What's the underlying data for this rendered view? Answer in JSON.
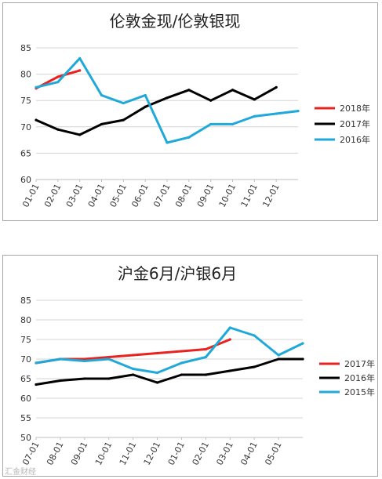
{
  "charts": [
    {
      "title": "伦敦金现/伦敦银现",
      "type": "line",
      "ylim": [
        60,
        85
      ],
      "yticks": [
        "60",
        "65",
        "70",
        "75",
        "80",
        "85"
      ],
      "categories": [
        "01-01",
        "02-01",
        "03-01",
        "04-01",
        "05-01",
        "06-01",
        "07-01",
        "08-01",
        "09-01",
        "10-01",
        "11-01",
        "12-01"
      ],
      "x": [
        1,
        2,
        3,
        4,
        5,
        6,
        7,
        8,
        9,
        10,
        11,
        12,
        13
      ],
      "grid": true,
      "legend_position": "right",
      "series": [
        {
          "name": "2018年",
          "color": "#e8231f",
          "values": [
            77.3,
            79.5,
            80.7,
            null,
            null,
            null,
            null,
            null,
            null,
            null,
            null,
            null,
            null
          ]
        },
        {
          "name": "2017年",
          "color": "#000000",
          "values": [
            71.3,
            69.5,
            68.5,
            70.5,
            71.3,
            73.8,
            75.5,
            77.0,
            75.0,
            77.0,
            75.2,
            77.5,
            null
          ]
        },
        {
          "name": "2016年",
          "color": "#1fa9d9",
          "values": [
            77.5,
            78.5,
            83.0,
            76.0,
            74.5,
            76.0,
            67.0,
            68.0,
            70.5,
            70.5,
            72.0,
            72.5,
            73.0
          ]
        }
      ]
    },
    {
      "title": "沪金6月/沪银6月",
      "type": "line",
      "ylim": [
        50,
        85
      ],
      "yticks": [
        "50",
        "55",
        "60",
        "65",
        "70",
        "75",
        "80",
        "85"
      ],
      "categories": [
        "07-01",
        "08-01",
        "09-01",
        "10-01",
        "11-01",
        "12-01",
        "01-01",
        "02-01",
        "03-01",
        "04-01",
        "05-01"
      ],
      "x": [
        1,
        2,
        3,
        4,
        5,
        6,
        7,
        8,
        9,
        10,
        11,
        12
      ],
      "grid": true,
      "legend_position": "right",
      "series": [
        {
          "name": "2017年",
          "color": "#e8231f",
          "values": [
            69.0,
            70.0,
            70.0,
            70.5,
            71.0,
            71.5,
            72.0,
            72.5,
            75.0,
            null,
            null,
            null
          ]
        },
        {
          "name": "2016年",
          "color": "#000000",
          "values": [
            63.5,
            64.5,
            65.0,
            65.0,
            66.0,
            64.0,
            66.0,
            66.0,
            67.0,
            68.0,
            70.0,
            70.0
          ]
        },
        {
          "name": "2015年",
          "color": "#1fa9d9",
          "values": [
            69.0,
            70.0,
            69.5,
            70.0,
            67.5,
            66.5,
            69.0,
            70.5,
            78.0,
            76.0,
            71.0,
            74.0
          ]
        }
      ]
    }
  ],
  "watermark": "汇金财经"
}
